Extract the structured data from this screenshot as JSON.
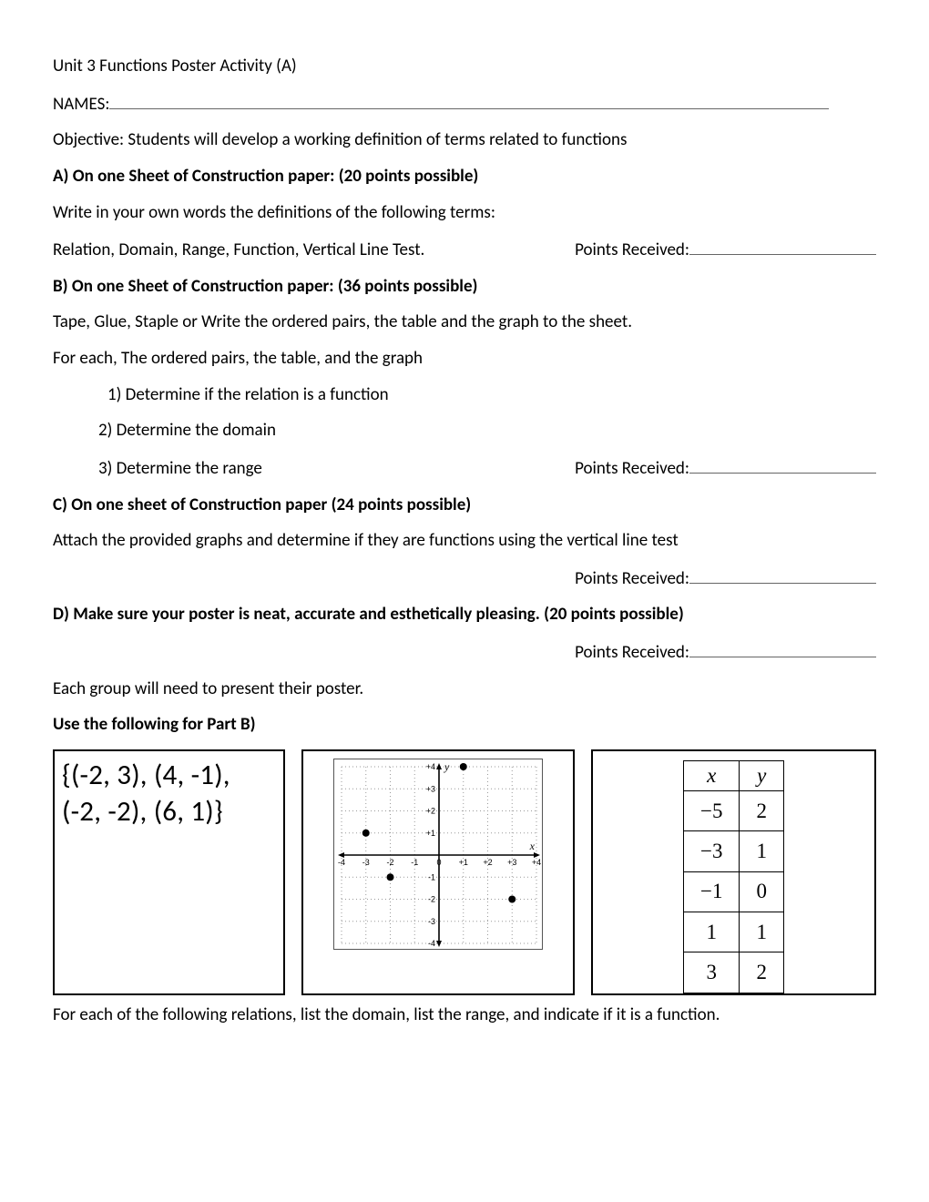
{
  "title": "Unit 3 Functions Poster Activity (A)",
  "names_label": "NAMES:",
  "objective": "Objective:  Students will develop a working definition of terms related to functions",
  "sectionA": {
    "heading": "A) On one Sheet of Construction paper:  (20 points possible)",
    "line1": "Write in your own words the definitions of the following terms:",
    "line2": "Relation, Domain, Range, Function, Vertical Line Test.",
    "points_label": "Points Received:"
  },
  "sectionB": {
    "heading": "B) On one Sheet of Construction paper: (36 points possible)",
    "line1": "Tape, Glue, Staple or Write the ordered pairs, the table and the graph to the sheet.",
    "line2": "For each, The ordered pairs, the table, and the graph",
    "item1": "1) Determine if the relation is a function",
    "item2": "2) Determine the domain",
    "item3": "3) Determine the range",
    "points_label": "Points Received:"
  },
  "sectionC": {
    "heading": "C) On one sheet of Construction paper (24 points possible)",
    "line1": "Attach the provided graphs and determine if they are functions using the vertical line test",
    "points_label": "Points Received:"
  },
  "sectionD": {
    "heading": "D) Make sure your poster is neat, accurate and esthetically pleasing. (20 points possible)",
    "points_label": "Points Received:"
  },
  "closing": "Each group will need to present their poster.",
  "partB_heading": "Use the following for Part B)",
  "panel_set": {
    "line1": "{(-2, 3), (4, -1),",
    "line2": "(-2, -2), (6, 1)}"
  },
  "graph": {
    "xmin": -4,
    "xmax": 4,
    "ymin": -4,
    "ymax": 4,
    "xlabel": "x",
    "ylabel": "y",
    "grid_color": "#9a9a9a",
    "axis_color": "#000000",
    "tick_font_px": 9,
    "tick_labels_x": [
      "-4",
      "-3",
      "-2",
      "-1",
      "0",
      "+1",
      "+2",
      "+3",
      "+4"
    ],
    "tick_labels_y_pos": [
      "+1",
      "+2",
      "+3",
      "+4"
    ],
    "tick_labels_y_neg": [
      "-1",
      "-2",
      "-3",
      "-4"
    ],
    "points": [
      {
        "x": 1,
        "y": 4
      },
      {
        "x": -3,
        "y": 1
      },
      {
        "x": -2,
        "y": -1
      },
      {
        "x": 3,
        "y": -2
      }
    ],
    "point_color": "#000000",
    "point_radius": 4
  },
  "table": {
    "header_x": "x",
    "header_y": "y",
    "rows": [
      {
        "x": "−5",
        "y": "2"
      },
      {
        "x": "−3",
        "y": "1"
      },
      {
        "x": "−1",
        "y": "0"
      },
      {
        "x": "1",
        "y": "1"
      },
      {
        "x": "3",
        "y": "2"
      }
    ]
  },
  "footer": "For each of the following relations, list the domain, list the range, and indicate if it is a function."
}
